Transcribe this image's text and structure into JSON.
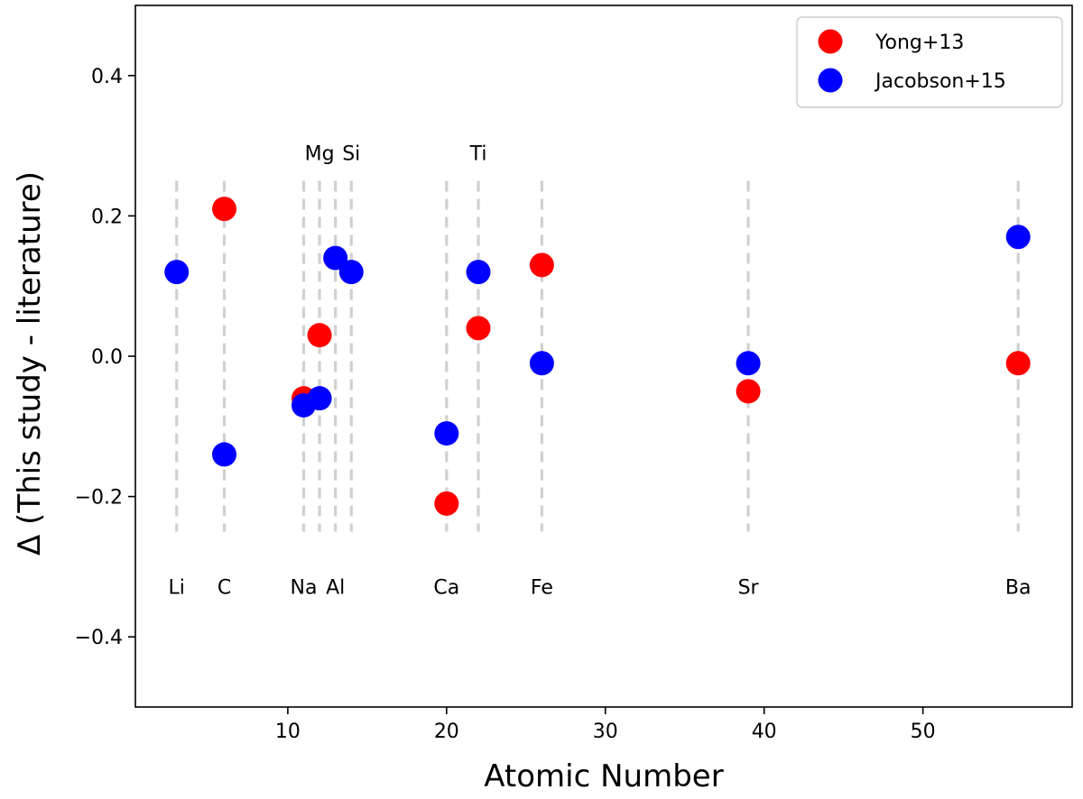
{
  "chart_data": {
    "type": "scatter",
    "title": "",
    "xlabel": "Atomic Number",
    "ylabel": "Δ (This study - literature)",
    "xlim": [
      0.4,
      59.4
    ],
    "ylim": [
      -0.5,
      0.5
    ],
    "xticks": [
      10,
      20,
      30,
      40,
      50
    ],
    "yticks": [
      -0.4,
      -0.2,
      0.0,
      0.2,
      0.4
    ],
    "ytick_labels": [
      "−0.4",
      "−0.2",
      "0.0",
      "0.2",
      "0.4"
    ],
    "grid": false,
    "legend": "top-right",
    "element_lines": [
      3,
      6,
      11,
      12,
      13,
      14,
      20,
      22,
      26,
      39,
      56
    ],
    "element_labels_bottom": [
      {
        "x": 3,
        "label": "Li"
      },
      {
        "x": 6,
        "label": "C"
      },
      {
        "x": 11,
        "label": "Na"
      },
      {
        "x": 13,
        "label": "Al"
      },
      {
        "x": 20,
        "label": "Ca"
      },
      {
        "x": 26,
        "label": "Fe"
      },
      {
        "x": 39,
        "label": "Sr"
      },
      {
        "x": 56,
        "label": "Ba"
      }
    ],
    "element_labels_top": [
      {
        "x": 12,
        "label": "Mg"
      },
      {
        "x": 14,
        "label": "Si"
      },
      {
        "x": 22,
        "label": "Ti"
      }
    ],
    "series": [
      {
        "name": "Yong+13",
        "color": "#ff0000",
        "points": [
          {
            "x": 6,
            "y": 0.21
          },
          {
            "x": 11,
            "y": -0.06
          },
          {
            "x": 12,
            "y": 0.03
          },
          {
            "x": 20,
            "y": -0.21
          },
          {
            "x": 22,
            "y": 0.04
          },
          {
            "x": 26,
            "y": 0.13
          },
          {
            "x": 39,
            "y": -0.05
          },
          {
            "x": 56,
            "y": -0.01
          }
        ]
      },
      {
        "name": "Jacobson+15",
        "color": "#0000ff",
        "points": [
          {
            "x": 3,
            "y": 0.12
          },
          {
            "x": 6,
            "y": -0.14
          },
          {
            "x": 11,
            "y": -0.07
          },
          {
            "x": 12,
            "y": -0.06
          },
          {
            "x": 13,
            "y": 0.14
          },
          {
            "x": 14,
            "y": 0.12
          },
          {
            "x": 20,
            "y": -0.11
          },
          {
            "x": 22,
            "y": 0.12
          },
          {
            "x": 26,
            "y": -0.01
          },
          {
            "x": 39,
            "y": -0.01
          },
          {
            "x": 56,
            "y": 0.17
          }
        ]
      }
    ]
  }
}
